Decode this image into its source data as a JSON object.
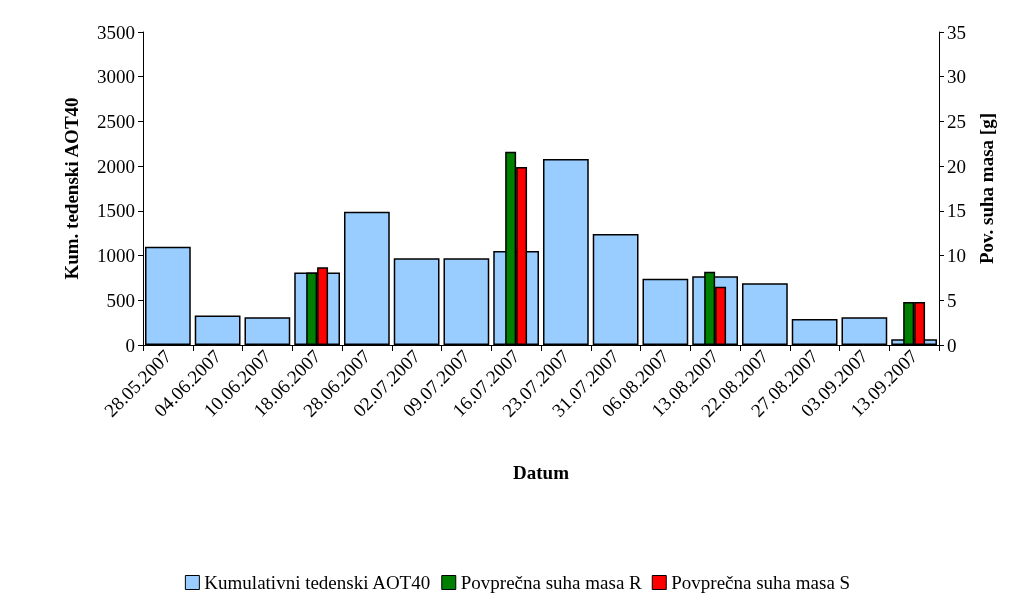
{
  "chart_data": {
    "type": "bar",
    "xlabel": "Datum",
    "ylabel": "Kum. tedenski AOT40",
    "y2label": "Pov. suha masa [g]",
    "categories": [
      "28.05.2007",
      "04.06.2007",
      "10.06.2007",
      "18.06.2007",
      "28.06.2007",
      "02.07.2007",
      "09.07.2007",
      "16.07.2007",
      "23.07.2007",
      "31.07.2007",
      "06.08.2007",
      "13.08.2007",
      "22.08.2007",
      "27.08.2007",
      "03.09.2007",
      "13.09.2007"
    ],
    "series": [
      {
        "name": "Kumulativni tedenski AOT40",
        "color": "#99ccff",
        "values": [
          1100,
          330,
          310,
          810,
          1490,
          970,
          970,
          1050,
          2080,
          1240,
          740,
          770,
          690,
          290,
          310,
          65
        ]
      },
      {
        "name": "Povprečna suha masa R",
        "color": "#008000",
        "axis": "y2",
        "values": [
          null,
          null,
          null,
          8.1,
          null,
          null,
          null,
          21.6,
          null,
          null,
          null,
          8.2,
          null,
          null,
          null,
          4.8
        ]
      },
      {
        "name": "Povprečna suha masa S",
        "color": "#ff0000",
        "axis": "y2",
        "values": [
          null,
          null,
          null,
          8.7,
          null,
          null,
          null,
          19.9,
          null,
          null,
          null,
          6.5,
          null,
          null,
          null,
          4.8
        ]
      }
    ],
    "ylim": [
      0,
      3500
    ],
    "yticks": [
      0,
      500,
      1000,
      1500,
      2000,
      2500,
      3000,
      3500
    ],
    "y2lim": [
      0,
      35
    ],
    "y2ticks": [
      0,
      5,
      10,
      15,
      20,
      25,
      30,
      35
    ],
    "grid": false,
    "legend": "bottom"
  }
}
